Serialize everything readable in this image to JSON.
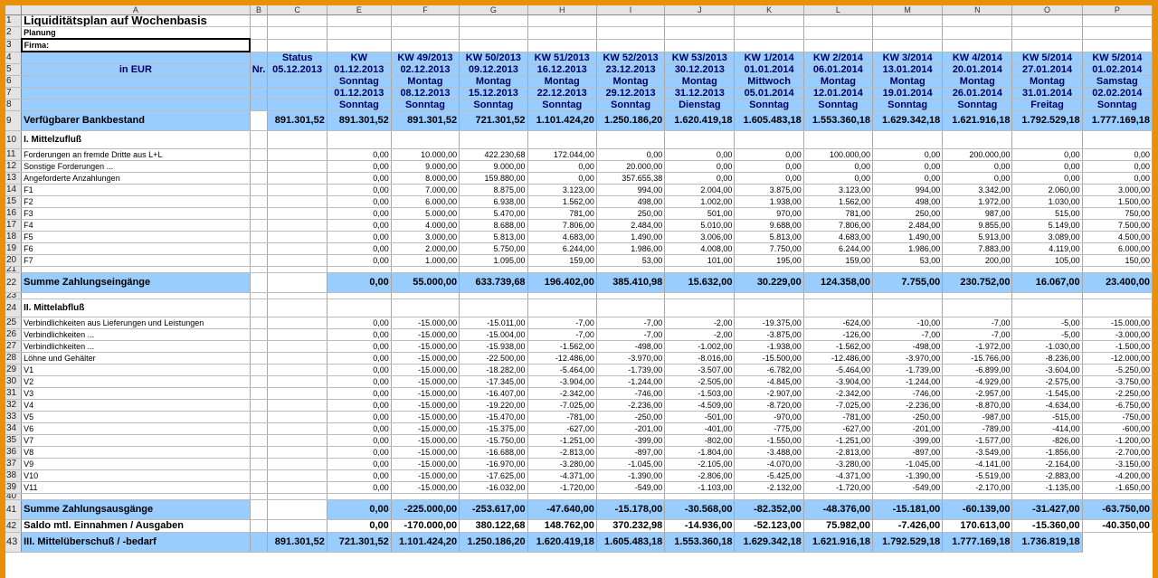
{
  "columns": [
    "A",
    "B",
    "C",
    "E",
    "F",
    "G",
    "H",
    "I",
    "J",
    "K",
    "L",
    "M",
    "N",
    "O",
    "P"
  ],
  "title": "Liquiditätsplan auf Wochenbasis",
  "planung": "Planung",
  "firma": "Firma:",
  "header": {
    "status_label": "Status",
    "status_date": "05.12.2013",
    "nr_label": "Nr.",
    "currency_label": "in EUR",
    "kw": [
      "KW",
      "KW 49/2013",
      "KW 50/2013",
      "KW 51/2013",
      "KW 52/2013",
      "KW 53/2013",
      "KW 1/2014",
      "KW 2/2014",
      "KW 3/2014",
      "KW 4/2014",
      "KW 5/2014",
      "KW 5/2014"
    ],
    "start_dates": [
      "01.12.2013",
      "02.12.2013",
      "09.12.2013",
      "16.12.2013",
      "23.12.2013",
      "30.12.2013",
      "01.01.2014",
      "06.01.2014",
      "13.01.2014",
      "20.01.2014",
      "27.01.2014",
      "01.02.2014"
    ],
    "start_days": [
      "Sonntag",
      "Montag",
      "Montag",
      "Montag",
      "Montag",
      "Montag",
      "Mittwoch",
      "Montag",
      "Montag",
      "Montag",
      "Montag",
      "Samstag"
    ],
    "end_dates": [
      "01.12.2013",
      "08.12.2013",
      "15.12.2013",
      "22.12.2013",
      "29.12.2013",
      "31.12.2013",
      "05.01.2014",
      "12.01.2014",
      "19.01.2014",
      "26.01.2014",
      "31.01.2014",
      "02.02.2014"
    ],
    "end_days": [
      "Sonntag",
      "Sonntag",
      "Sonntag",
      "Sonntag",
      "Sonntag",
      "Dienstag",
      "Sonntag",
      "Sonntag",
      "Sonntag",
      "Sonntag",
      "Freitag",
      "Sonntag"
    ]
  },
  "bank": {
    "label": "Verfügbarer Bankbestand",
    "status": "891.301,52",
    "values": [
      "891.301,52",
      "891.301,52",
      "721.301,52",
      "1.101.424,20",
      "1.250.186,20",
      "1.620.419,18",
      "1.605.483,18",
      "1.553.360,18",
      "1.629.342,18",
      "1.621.916,18",
      "1.792.529,18",
      "1.777.169,18"
    ]
  },
  "inflow": {
    "label": "I. Mittelzufluß",
    "rows": [
      {
        "label": "Forderungen an fremde Dritte aus L+L",
        "values": [
          "0,00",
          "10.000,00",
          "422.230,68",
          "172.044,00",
          "0,00",
          "0,00",
          "0,00",
          "100.000,00",
          "0,00",
          "200.000,00",
          "0,00",
          "0,00"
        ]
      },
      {
        "label": "Sonstige Forderungen ...",
        "values": [
          "0,00",
          "9.000,00",
          "9.000,00",
          "0,00",
          "20.000,00",
          "0,00",
          "0,00",
          "0,00",
          "0,00",
          "0,00",
          "0,00",
          "0,00"
        ]
      },
      {
        "label": "Angeforderte Anzahlungen",
        "values": [
          "0,00",
          "8.000,00",
          "159.880,00",
          "0,00",
          "357.655,38",
          "0,00",
          "0,00",
          "0,00",
          "0,00",
          "0,00",
          "0,00",
          "0,00"
        ]
      },
      {
        "label": "F1",
        "values": [
          "0,00",
          "7.000,00",
          "8.875,00",
          "3.123,00",
          "994,00",
          "2.004,00",
          "3.875,00",
          "3.123,00",
          "994,00",
          "3.342,00",
          "2.060,00",
          "3.000,00"
        ]
      },
      {
        "label": "F2",
        "values": [
          "0,00",
          "6.000,00",
          "6.938,00",
          "1.562,00",
          "498,00",
          "1.002,00",
          "1.938,00",
          "1.562,00",
          "498,00",
          "1.972,00",
          "1.030,00",
          "1.500,00"
        ]
      },
      {
        "label": "F3",
        "values": [
          "0,00",
          "5.000,00",
          "5.470,00",
          "781,00",
          "250,00",
          "501,00",
          "970,00",
          "781,00",
          "250,00",
          "987,00",
          "515,00",
          "750,00"
        ]
      },
      {
        "label": "F4",
        "values": [
          "0,00",
          "4.000,00",
          "8.688,00",
          "7.806,00",
          "2.484,00",
          "5.010,00",
          "9.688,00",
          "7.806,00",
          "2.484,00",
          "9.855,00",
          "5.149,00",
          "7.500,00"
        ]
      },
      {
        "label": "F5",
        "values": [
          "0,00",
          "3.000,00",
          "5.813,00",
          "4.683,00",
          "1.490,00",
          "3.006,00",
          "5.813,00",
          "4.683,00",
          "1.490,00",
          "5.913,00",
          "3.089,00",
          "4.500,00"
        ]
      },
      {
        "label": "F6",
        "values": [
          "0,00",
          "2.000,00",
          "5.750,00",
          "6.244,00",
          "1.986,00",
          "4.008,00",
          "7.750,00",
          "6.244,00",
          "1.986,00",
          "7.883,00",
          "4.119,00",
          "6.000,00"
        ]
      },
      {
        "label": "F7",
        "values": [
          "0,00",
          "1.000,00",
          "1.095,00",
          "159,00",
          "53,00",
          "101,00",
          "195,00",
          "159,00",
          "53,00",
          "200,00",
          "105,00",
          "150,00"
        ]
      }
    ],
    "sum_label": "Summe Zahlungseingänge",
    "sum_values": [
      "0,00",
      "55.000,00",
      "633.739,68",
      "196.402,00",
      "385.410,98",
      "15.632,00",
      "30.229,00",
      "124.358,00",
      "7.755,00",
      "230.752,00",
      "16.067,00",
      "23.400,00"
    ]
  },
  "outflow": {
    "label": "II. Mittelabfluß",
    "rows": [
      {
        "label": "Verbindlichkeiten aus Lieferungen und Leistungen",
        "values": [
          "0,00",
          "-15.000,00",
          "-15.011,00",
          "-7,00",
          "-7,00",
          "-2,00",
          "-19.375,00",
          "-624,00",
          "-10,00",
          "-7,00",
          "-5,00",
          "-15.000,00"
        ]
      },
      {
        "label": "Verbindlichkeiten ...",
        "values": [
          "0,00",
          "-15.000,00",
          "-15.004,00",
          "-7,00",
          "-7,00",
          "-2,00",
          "-3.875,00",
          "-126,00",
          "-7,00",
          "-7,00",
          "-5,00",
          "-3.000,00"
        ]
      },
      {
        "label": "Verbindlichkeiten ...",
        "values": [
          "0,00",
          "-15.000,00",
          "-15.938,00",
          "-1.562,00",
          "-498,00",
          "-1.002,00",
          "-1.938,00",
          "-1.562,00",
          "-498,00",
          "-1.972,00",
          "-1.030,00",
          "-1.500,00"
        ]
      },
      {
        "label": "Löhne und Gehälter",
        "values": [
          "0,00",
          "-15.000,00",
          "-22.500,00",
          "-12.486,00",
          "-3.970,00",
          "-8.016,00",
          "-15.500,00",
          "-12.486,00",
          "-3.970,00",
          "-15.766,00",
          "-8.236,00",
          "-12.000,00"
        ]
      },
      {
        "label": "V1",
        "values": [
          "0,00",
          "-15.000,00",
          "-18.282,00",
          "-5.464,00",
          "-1.739,00",
          "-3.507,00",
          "-6.782,00",
          "-5.464,00",
          "-1.739,00",
          "-6.899,00",
          "-3.604,00",
          "-5.250,00"
        ]
      },
      {
        "label": "V2",
        "values": [
          "0,00",
          "-15.000,00",
          "-17.345,00",
          "-3.904,00",
          "-1.244,00",
          "-2.505,00",
          "-4.845,00",
          "-3.904,00",
          "-1.244,00",
          "-4.929,00",
          "-2.575,00",
          "-3.750,00"
        ]
      },
      {
        "label": "V3",
        "values": [
          "0,00",
          "-15.000,00",
          "-16.407,00",
          "-2.342,00",
          "-746,00",
          "-1.503,00",
          "-2.907,00",
          "-2.342,00",
          "-746,00",
          "-2.957,00",
          "-1.545,00",
          "-2.250,00"
        ]
      },
      {
        "label": "V4",
        "values": [
          "0,00",
          "-15.000,00",
          "-19.220,00",
          "-7.025,00",
          "-2.236,00",
          "-4.509,00",
          "-8.720,00",
          "-7.025,00",
          "-2.236,00",
          "-8.870,00",
          "-4.634,00",
          "-6.750,00"
        ]
      },
      {
        "label": "V5",
        "values": [
          "0,00",
          "-15.000,00",
          "-15.470,00",
          "-781,00",
          "-250,00",
          "-501,00",
          "-970,00",
          "-781,00",
          "-250,00",
          "-987,00",
          "-515,00",
          "-750,00"
        ]
      },
      {
        "label": "V6",
        "values": [
          "0,00",
          "-15.000,00",
          "-15.375,00",
          "-627,00",
          "-201,00",
          "-401,00",
          "-775,00",
          "-627,00",
          "-201,00",
          "-789,00",
          "-414,00",
          "-600,00"
        ]
      },
      {
        "label": "V7",
        "values": [
          "0,00",
          "-15.000,00",
          "-15.750,00",
          "-1.251,00",
          "-399,00",
          "-802,00",
          "-1.550,00",
          "-1.251,00",
          "-399,00",
          "-1.577,00",
          "-826,00",
          "-1.200,00"
        ]
      },
      {
        "label": "V8",
        "values": [
          "0,00",
          "-15.000,00",
          "-16.688,00",
          "-2.813,00",
          "-897,00",
          "-1.804,00",
          "-3.488,00",
          "-2.813,00",
          "-897,00",
          "-3.549,00",
          "-1.856,00",
          "-2.700,00"
        ]
      },
      {
        "label": "V9",
        "values": [
          "0,00",
          "-15.000,00",
          "-16.970,00",
          "-3.280,00",
          "-1.045,00",
          "-2.105,00",
          "-4.070,00",
          "-3.280,00",
          "-1.045,00",
          "-4.141,00",
          "-2.164,00",
          "-3.150,00"
        ]
      },
      {
        "label": "V10",
        "values": [
          "0,00",
          "-15.000,00",
          "-17.625,00",
          "-4.371,00",
          "-1.390,00",
          "-2.806,00",
          "-5.425,00",
          "-4.371,00",
          "-1.390,00",
          "-5.519,00",
          "-2.883,00",
          "-4.200,00"
        ]
      },
      {
        "label": "V11",
        "values": [
          "0,00",
          "-15.000,00",
          "-16.032,00",
          "-1.720,00",
          "-549,00",
          "-1.103,00",
          "-2.132,00",
          "-1.720,00",
          "-549,00",
          "-2.170,00",
          "-1.135,00",
          "-1.650,00"
        ]
      }
    ],
    "sum_label": "Summe Zahlungsausgänge",
    "sum_values": [
      "0,00",
      "-225.000,00",
      "-253.617,00",
      "-47.640,00",
      "-15.178,00",
      "-30.568,00",
      "-82.352,00",
      "-48.376,00",
      "-15.181,00",
      "-60.139,00",
      "-31.427,00",
      "-63.750,00"
    ]
  },
  "saldo": {
    "label": "Saldo mtl. Einnahmen / Ausgaben",
    "values": [
      "0,00",
      "-170.000,00",
      "380.122,68",
      "148.762,00",
      "370.232,98",
      "-14.936,00",
      "-52.123,00",
      "75.982,00",
      "-7.426,00",
      "170.613,00",
      "-15.360,00",
      "-40.350,00"
    ]
  },
  "last": {
    "label": "III. Mittelüberschuß / -bedarf",
    "values": [
      "891.301,52",
      "721.301,52",
      "1.101.424,20",
      "1.250.186,20",
      "1.620.419,18",
      "1.605.483,18",
      "1.553.360,18",
      "1.629.342,18",
      "1.621.916,18",
      "1.792.529,18",
      "1.777.169,18",
      "1.736.819,18"
    ]
  }
}
